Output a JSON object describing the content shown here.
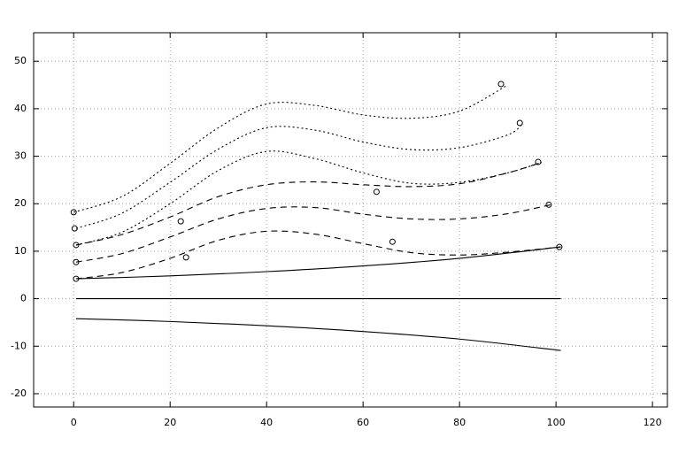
{
  "chart_data": {
    "type": "line",
    "xlim": [
      -8.3,
      123.1
    ],
    "ylim": [
      -22.8,
      56
    ],
    "xticks": [
      0,
      20,
      40,
      60,
      80,
      100,
      120
    ],
    "yticks": [
      -20,
      -10,
      0,
      10,
      20,
      30,
      40,
      50
    ],
    "grid": true,
    "series": [
      {
        "color": "#000000",
        "dash": "solid",
        "x": [
          0.5,
          20,
          40,
          60,
          80,
          101
        ],
        "values": [
          4.2,
          4.8,
          5.7,
          6.9,
          8.5,
          10.9
        ]
      },
      {
        "color": "#000000",
        "dash": "solid",
        "x": [
          0.5,
          101
        ],
        "values": [
          0,
          0
        ]
      },
      {
        "color": "#000000",
        "dash": "solid",
        "x": [
          0.5,
          20,
          40,
          60,
          80,
          101
        ],
        "values": [
          -4.2,
          -4.8,
          -5.7,
          -6.9,
          -8.5,
          -10.9
        ]
      },
      {
        "color": "#000000",
        "dash": "dashed",
        "x": [
          0.5,
          10,
          20,
          30,
          40,
          50,
          60,
          70,
          80,
          90,
          101
        ],
        "values": [
          4.2,
          5.5,
          8.5,
          12.3,
          14.2,
          13.6,
          11.6,
          9.7,
          9.2,
          9.8,
          10.9
        ]
      },
      {
        "color": "#000000",
        "dash": "dashed",
        "x": [
          0.5,
          10,
          20,
          30,
          40,
          50,
          60,
          70,
          80,
          90,
          99
        ],
        "values": [
          7.7,
          9.5,
          13,
          16.8,
          19,
          19.2,
          17.8,
          16.8,
          16.8,
          17.9,
          19.8
        ]
      },
      {
        "color": "#000000",
        "dash": "dashed",
        "x": [
          0.5,
          10,
          20,
          30,
          40,
          50,
          60,
          70,
          80,
          90,
          97
        ],
        "values": [
          11.3,
          13.5,
          17.2,
          21.5,
          24,
          24.6,
          24,
          23.6,
          24.2,
          26.5,
          28.7
        ]
      },
      {
        "color": "#000000",
        "dash": "dotted",
        "x": [
          0.5,
          10,
          20,
          30,
          40,
          50,
          60,
          70,
          80,
          90,
          97
        ],
        "values": [
          11.3,
          14,
          20,
          27,
          31,
          29.5,
          26.5,
          24.3,
          24.5,
          26.5,
          28.7
        ]
      },
      {
        "color": "#000000",
        "dash": "dotted",
        "x": [
          0.5,
          10,
          20,
          30,
          40,
          50,
          60,
          70,
          80,
          90,
          93
        ],
        "values": [
          14.8,
          18,
          24.5,
          31.5,
          36,
          35.5,
          33,
          31.4,
          31.8,
          34.5,
          36.8
        ]
      },
      {
        "color": "#000000",
        "dash": "dotted",
        "x": [
          0,
          10,
          20,
          30,
          40,
          50,
          60,
          70,
          80,
          90
        ],
        "values": [
          18.2,
          21.5,
          28.5,
          36,
          41,
          40.7,
          38.7,
          38,
          39.5,
          45
        ]
      },
      {
        "color": "#000000",
        "type": "scatter",
        "marker": "circle",
        "x": [
          0,
          0.2,
          0.5,
          0.5,
          0.5,
          22.2,
          23.3,
          62.8,
          66.1,
          88.6,
          92.5,
          96.3,
          98.5,
          100.7
        ],
        "values": [
          18.2,
          14.8,
          11.3,
          7.7,
          4.2,
          16.3,
          8.7,
          22.5,
          12,
          45.2,
          37,
          28.8,
          19.8,
          10.9
        ]
      }
    ]
  }
}
